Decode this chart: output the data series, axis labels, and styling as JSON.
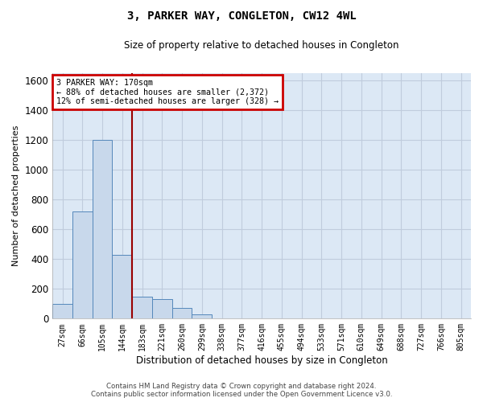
{
  "title": "3, PARKER WAY, CONGLETON, CW12 4WL",
  "subtitle": "Size of property relative to detached houses in Congleton",
  "xlabel": "Distribution of detached houses by size in Congleton",
  "ylabel": "Number of detached properties",
  "categories": [
    "27sqm",
    "66sqm",
    "105sqm",
    "144sqm",
    "183sqm",
    "221sqm",
    "260sqm",
    "299sqm",
    "338sqm",
    "377sqm",
    "416sqm",
    "455sqm",
    "494sqm",
    "533sqm",
    "571sqm",
    "610sqm",
    "649sqm",
    "688sqm",
    "727sqm",
    "766sqm",
    "805sqm"
  ],
  "values": [
    100,
    720,
    1200,
    430,
    150,
    130,
    70,
    30,
    0,
    0,
    0,
    0,
    0,
    0,
    0,
    0,
    0,
    0,
    0,
    0,
    0
  ],
  "bar_color": "#c8d8eb",
  "bar_edge_color": "#5588bb",
  "ylim": [
    0,
    1650
  ],
  "yticks": [
    0,
    200,
    400,
    600,
    800,
    1000,
    1200,
    1400,
    1600
  ],
  "vline_x_index": 3.5,
  "vline_color": "#990000",
  "annotation_text": "3 PARKER WAY: 170sqm\n← 88% of detached houses are smaller (2,372)\n12% of semi-detached houses are larger (328) →",
  "annotation_box_color": "#cc0000",
  "bg_color": "#dce8f5",
  "grid_color": "#c0ccdd",
  "footer_line1": "Contains HM Land Registry data © Crown copyright and database right 2024.",
  "footer_line2": "Contains public sector information licensed under the Open Government Licence v3.0."
}
